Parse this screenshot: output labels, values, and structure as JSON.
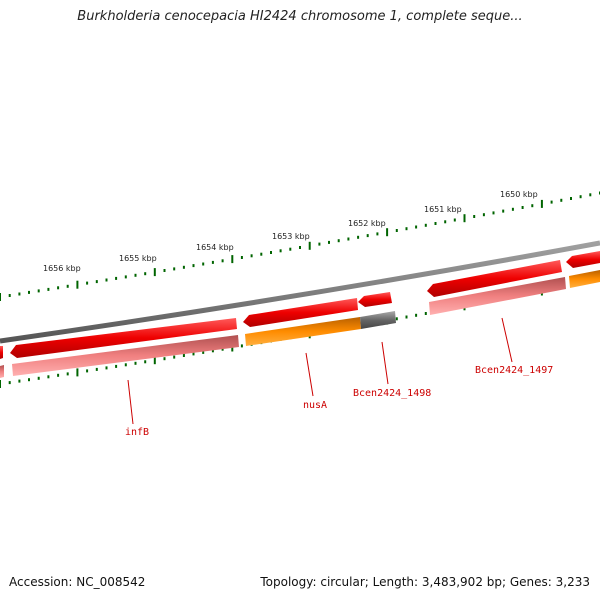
{
  "title": "Burkholderia cenocepacia HI2424 chromosome 1, complete seque...",
  "footer": {
    "accession": "Accession: NC_008542",
    "summary": "Topology: circular; Length: 3,483,902 bp; Genes: 3,233"
  },
  "scale": {
    "tick_labels": [
      "1656 kbp",
      "1655 kbp",
      "1654 kbp",
      "1653 kbp",
      "1652 kbp",
      "1651 kbp",
      "1650 kbp"
    ]
  },
  "genes": [
    {
      "name": "infB",
      "color": "#ee0000",
      "track": "outer"
    },
    {
      "name": "nusA",
      "color": "#ff8c00",
      "track": "inner"
    },
    {
      "name": "Bcen2424_1498",
      "color": "#666666",
      "track": "inner"
    },
    {
      "name": "Bcen2424_1497",
      "color": "#ee0000",
      "track": "outer"
    }
  ],
  "colors": {
    "cds": "#ee0000",
    "cds_light": "#f08080",
    "rna": "#ff8c00",
    "other": "#666666",
    "backbone": "#808080",
    "ticks": "#006400",
    "labels": "#cc0000"
  }
}
